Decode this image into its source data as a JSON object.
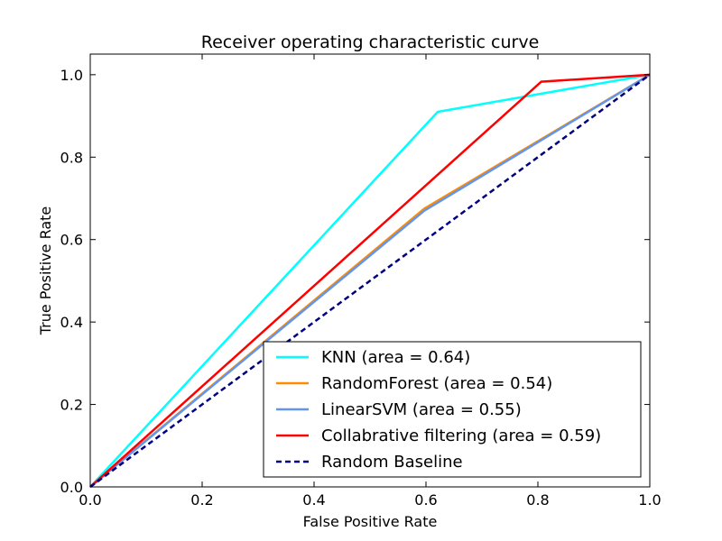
{
  "chart_data": {
    "type": "line",
    "title": "Receiver operating characteristic curve",
    "xlabel": "False Positive Rate",
    "ylabel": "True Positive Rate",
    "xlim": [
      0.0,
      1.0
    ],
    "ylim": [
      0.0,
      1.05
    ],
    "x_ticks": [
      0.0,
      0.2,
      0.4,
      0.6,
      0.8,
      1.0
    ],
    "y_ticks": [
      0.0,
      0.2,
      0.4,
      0.6,
      0.8,
      1.0
    ],
    "x_tick_labels": [
      "0.0",
      "0.2",
      "0.4",
      "0.6",
      "0.8",
      "1.0"
    ],
    "y_tick_labels": [
      "0.0",
      "0.2",
      "0.4",
      "0.6",
      "0.8",
      "1.0"
    ],
    "legend_position": "lower-right",
    "series": [
      {
        "name": "KNN (area = 0.64)",
        "color": "#00ffff",
        "style": "solid",
        "x": [
          0.0,
          0.621,
          1.0
        ],
        "y": [
          0.0,
          0.91,
          1.0
        ]
      },
      {
        "name": "RandomForest (area = 0.54)",
        "color": "#ff8c00",
        "style": "solid",
        "x": [
          0.0,
          0.597,
          1.0
        ],
        "y": [
          0.0,
          0.675,
          1.0
        ]
      },
      {
        "name": "LinearSVM (area = 0.55)",
        "color": "#6495ed",
        "style": "solid",
        "x": [
          0.0,
          0.597,
          1.0
        ],
        "y": [
          0.0,
          0.67,
          1.0
        ]
      },
      {
        "name": "Collabrative filtering (area = 0.59)",
        "color": "#ff0000",
        "style": "solid",
        "x": [
          0.0,
          0.806,
          1.0
        ],
        "y": [
          0.0,
          0.983,
          1.0
        ]
      },
      {
        "name": "Random Baseline",
        "color": "#000080",
        "style": "dashed",
        "x": [
          0.0,
          1.0
        ],
        "y": [
          0.0,
          1.0
        ]
      }
    ]
  }
}
